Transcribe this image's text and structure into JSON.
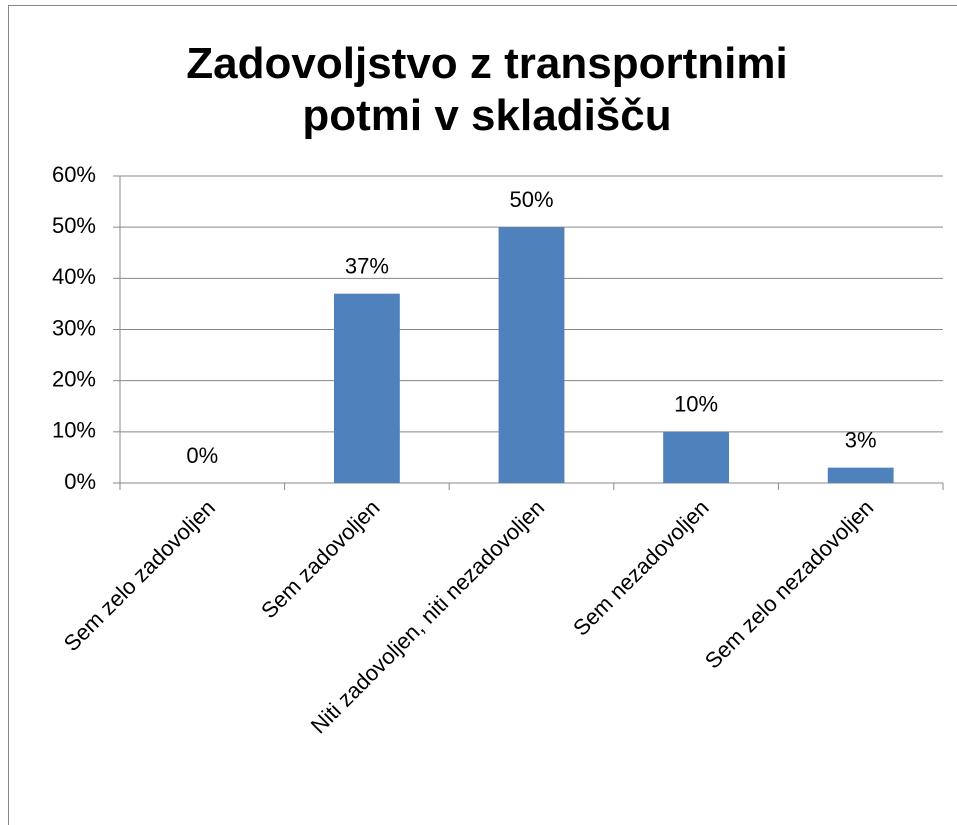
{
  "chart_data": {
    "type": "bar",
    "title": "Zadovoljstvo z transportnimi potmi v skladišču",
    "categories": [
      "Sem zelo zadovoljen",
      "Sem zadovoljen",
      "Niti zadovoljen, niti nezadovoljen",
      "Sem nezadovoljen",
      "Sem zelo nezadovoljen"
    ],
    "values": [
      0,
      37,
      50,
      10,
      3
    ],
    "value_labels": [
      "0%",
      "37%",
      "50%",
      "10%",
      "3%"
    ],
    "color": "#4f81bd",
    "ylim": [
      0,
      60
    ],
    "yticks": [
      {
        "value": 0,
        "label": "0%"
      },
      {
        "value": 10,
        "label": "10%"
      },
      {
        "value": 20,
        "label": "20%"
      },
      {
        "value": 30,
        "label": "30%"
      },
      {
        "value": 40,
        "label": "40%"
      },
      {
        "value": 50,
        "label": "50%"
      },
      {
        "value": 60,
        "label": "60%"
      }
    ],
    "grid": true
  }
}
